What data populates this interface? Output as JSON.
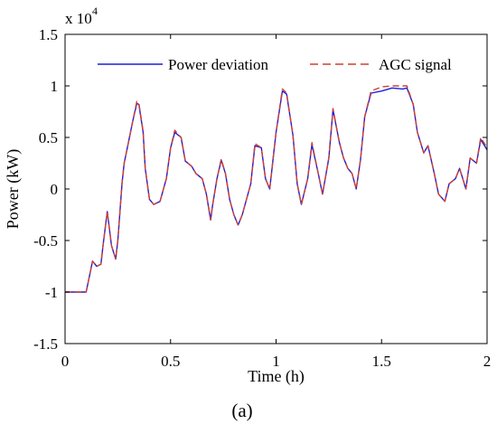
{
  "panel_label": "(a)",
  "chart_data": {
    "type": "line",
    "title": "",
    "xlabel": "Time (h)",
    "ylabel": "Power (kW)",
    "y_multiplier_label": "x 10",
    "y_multiplier_exp": "4",
    "xlim": [
      0,
      2
    ],
    "ylim": [
      -1.5,
      1.5
    ],
    "x_ticks": [
      0,
      0.5,
      1,
      1.5,
      2
    ],
    "x_tick_labels": [
      "0",
      "0.5",
      "1",
      "1.5",
      "2"
    ],
    "y_ticks": [
      -1.5,
      -1,
      -0.5,
      0,
      0.5,
      1,
      1.5
    ],
    "y_tick_labels": [
      "-1.5",
      "-1",
      "-0.5",
      "0",
      "0.5",
      "1",
      "1.5"
    ],
    "grid": false,
    "legend_position": "top",
    "colors": {
      "power_deviation": "#1f1fd6",
      "agc_signal": "#d04030"
    },
    "x": [
      0.0,
      0.05,
      0.1,
      0.11,
      0.13,
      0.15,
      0.17,
      0.18,
      0.2,
      0.22,
      0.24,
      0.25,
      0.27,
      0.28,
      0.3,
      0.32,
      0.34,
      0.35,
      0.37,
      0.38,
      0.4,
      0.42,
      0.45,
      0.48,
      0.5,
      0.52,
      0.55,
      0.57,
      0.6,
      0.62,
      0.65,
      0.67,
      0.69,
      0.7,
      0.72,
      0.74,
      0.76,
      0.78,
      0.8,
      0.82,
      0.84,
      0.86,
      0.88,
      0.9,
      0.93,
      0.95,
      0.97,
      1.0,
      1.03,
      1.05,
      1.08,
      1.1,
      1.12,
      1.15,
      1.17,
      1.2,
      1.22,
      1.25,
      1.27,
      1.3,
      1.32,
      1.34,
      1.36,
      1.38,
      1.4,
      1.42,
      1.45,
      1.5,
      1.55,
      1.6,
      1.62,
      1.65,
      1.67,
      1.7,
      1.72,
      1.75,
      1.77,
      1.8,
      1.82,
      1.85,
      1.87,
      1.9,
      1.92,
      1.95,
      1.97,
      2.0
    ],
    "series": [
      {
        "name": "Power deviation",
        "values": [
          -1.0,
          -1.0,
          -1.0,
          -0.9,
          -0.7,
          -0.75,
          -0.73,
          -0.55,
          -0.22,
          -0.55,
          -0.68,
          -0.5,
          0.05,
          0.25,
          0.45,
          0.65,
          0.83,
          0.82,
          0.55,
          0.2,
          -0.1,
          -0.15,
          -0.12,
          0.1,
          0.4,
          0.55,
          0.5,
          0.27,
          0.22,
          0.15,
          0.1,
          -0.05,
          -0.3,
          -0.15,
          0.1,
          0.28,
          0.15,
          -0.1,
          -0.25,
          -0.35,
          -0.25,
          -0.1,
          0.05,
          0.42,
          0.4,
          0.1,
          0.0,
          0.55,
          0.95,
          0.92,
          0.52,
          0.05,
          -0.15,
          0.1,
          0.43,
          0.15,
          -0.05,
          0.3,
          0.77,
          0.45,
          0.3,
          0.2,
          0.15,
          0.0,
          0.28,
          0.7,
          0.93,
          0.95,
          0.98,
          0.97,
          0.98,
          0.82,
          0.55,
          0.35,
          0.42,
          0.15,
          -0.05,
          -0.12,
          0.05,
          0.1,
          0.2,
          0.0,
          0.3,
          0.25,
          0.48,
          0.38
        ]
      },
      {
        "name": "AGC signal",
        "values": [
          -1.0,
          -1.0,
          -1.0,
          -0.9,
          -0.7,
          -0.75,
          -0.73,
          -0.55,
          -0.22,
          -0.55,
          -0.68,
          -0.5,
          0.05,
          0.25,
          0.45,
          0.65,
          0.85,
          0.83,
          0.56,
          0.2,
          -0.1,
          -0.15,
          -0.12,
          0.1,
          0.4,
          0.57,
          0.5,
          0.27,
          0.22,
          0.15,
          0.1,
          -0.05,
          -0.3,
          -0.15,
          0.1,
          0.29,
          0.15,
          -0.1,
          -0.25,
          -0.35,
          -0.25,
          -0.1,
          0.05,
          0.44,
          0.4,
          0.1,
          0.0,
          0.55,
          0.97,
          0.93,
          0.52,
          0.05,
          -0.15,
          0.1,
          0.45,
          0.15,
          -0.05,
          0.3,
          0.78,
          0.45,
          0.3,
          0.2,
          0.15,
          0.0,
          0.28,
          0.7,
          0.95,
          0.99,
          1.0,
          1.0,
          1.0,
          0.82,
          0.55,
          0.35,
          0.42,
          0.15,
          -0.05,
          -0.12,
          0.05,
          0.1,
          0.2,
          0.0,
          0.3,
          0.25,
          0.5,
          0.4
        ]
      }
    ]
  }
}
